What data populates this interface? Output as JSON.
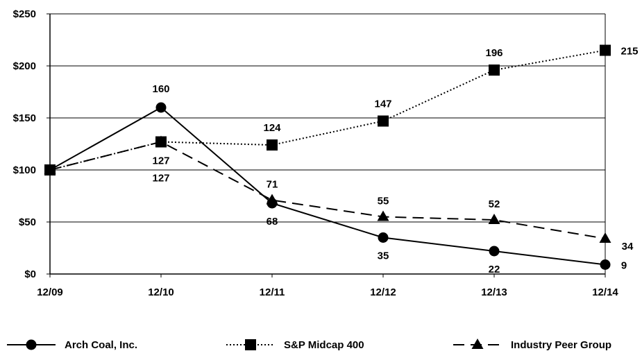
{
  "chart_data": {
    "type": "line",
    "categories": [
      "12/09",
      "12/10",
      "12/11",
      "12/12",
      "12/13",
      "12/14"
    ],
    "ylim": [
      0,
      250
    ],
    "yticks": [
      "$0",
      "$50",
      "$100",
      "$150",
      "$200",
      "$250"
    ],
    "grid": true,
    "legend_placement": "bottom",
    "series": [
      {
        "name": "Arch Coal, Inc.",
        "values": [
          100,
          160,
          68,
          35,
          22,
          9
        ],
        "labels": [
          "",
          "160",
          "68",
          "35",
          "22",
          "9"
        ],
        "marker": "circle",
        "line_style": "solid",
        "color": "#000000"
      },
      {
        "name": "S&P Midcap 400",
        "values": [
          100,
          127,
          124,
          147,
          196,
          215
        ],
        "labels": [
          "",
          "127",
          "124",
          "147",
          "196",
          "215"
        ],
        "marker": "square",
        "line_style": "dotted",
        "color": "#000000"
      },
      {
        "name": "Industry Peer Group",
        "values": [
          100,
          127,
          71,
          55,
          52,
          34
        ],
        "labels": [
          "",
          "127",
          "71",
          "55",
          "52",
          "34"
        ],
        "marker": "triangle",
        "line_style": "dashed",
        "color": "#000000"
      }
    ]
  }
}
